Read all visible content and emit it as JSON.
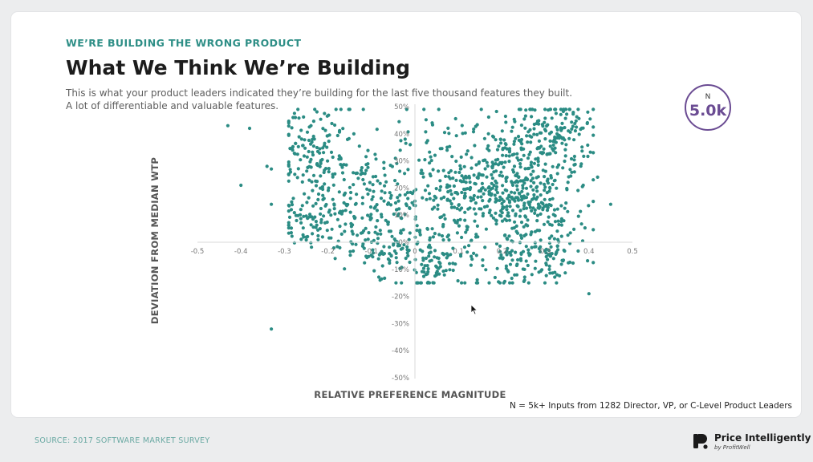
{
  "header": {
    "eyebrow": "WE’RE BUILDING THE WRONG PRODUCT",
    "title": "What We Think We’re Building",
    "subtitle_line1": "This is what your product leaders indicated they’re building for the last five thousand features they built.",
    "subtitle_line2": "A lot of differentiable and valuable features."
  },
  "badge": {
    "label": "N",
    "value": "5.0k"
  },
  "footnote": "N = 5k+ Inputs from 1282 Director, VP, or C-Level Product Leaders",
  "source": "SOURCE: 2017 SOFTWARE MARKET SURVEY",
  "brand": {
    "name": "Price Intelligently",
    "sub": "by ProfitWell",
    "icon": "price-intelligently-logo"
  },
  "colors": {
    "accent": "#2f8f87",
    "dots": "#2b8c84",
    "badge": "#6b4c93"
  },
  "chart_data": {
    "type": "scatter",
    "xlabel": "RELATIVE PREFERENCE MAGNITUDE",
    "ylabel": "DEVIATION FROM MEDIAN WTP",
    "xlim": [
      -0.5,
      0.5
    ],
    "ylim": [
      -50,
      50
    ],
    "x_ticks": [
      "-0.5",
      "-0.4",
      "-0.3",
      "-0.2",
      "-0.1",
      "0",
      "0.1",
      "0.2",
      "0.3",
      "0.4",
      "0.5"
    ],
    "y_ticks": [
      "50%",
      "40%",
      "30%",
      "20%",
      "10%",
      "0%",
      "-10%",
      "-20%",
      "-30%",
      "-40%",
      "-50%"
    ],
    "grid": false,
    "clusters": [
      {
        "cx": -0.22,
        "cy": 30,
        "sx": 0.05,
        "sy": 10,
        "n": 170
      },
      {
        "cx": -0.24,
        "cy": 8,
        "sx": 0.04,
        "sy": 5,
        "n": 70
      },
      {
        "cx": -0.1,
        "cy": 14,
        "sx": 0.06,
        "sy": 10,
        "n": 150
      },
      {
        "cx": -0.08,
        "cy": -3,
        "sx": 0.05,
        "sy": 4,
        "n": 60
      },
      {
        "cx": 0.1,
        "cy": 18,
        "sx": 0.08,
        "sy": 12,
        "n": 260
      },
      {
        "cx": 0.05,
        "cy": -8,
        "sx": 0.05,
        "sy": 5,
        "n": 90
      },
      {
        "cx": 0.22,
        "cy": 22,
        "sx": 0.06,
        "sy": 11,
        "n": 230
      },
      {
        "cx": 0.32,
        "cy": 40,
        "sx": 0.05,
        "sy": 7,
        "n": 160
      },
      {
        "cx": 0.3,
        "cy": 12,
        "sx": 0.05,
        "sy": 9,
        "n": 130
      },
      {
        "cx": 0.27,
        "cy": -8,
        "sx": 0.06,
        "sy": 6,
        "n": 110
      }
    ],
    "outliers": [
      [
        -0.43,
        43
      ],
      [
        -0.38,
        42
      ],
      [
        -0.4,
        21
      ],
      [
        -0.34,
        28
      ],
      [
        -0.33,
        27
      ],
      [
        -0.33,
        14
      ],
      [
        -0.33,
        -32
      ],
      [
        -0.08,
        -14
      ],
      [
        0.4,
        -19
      ],
      [
        0.45,
        14
      ],
      [
        -0.28,
        46
      ],
      [
        0.42,
        24
      ]
    ]
  }
}
